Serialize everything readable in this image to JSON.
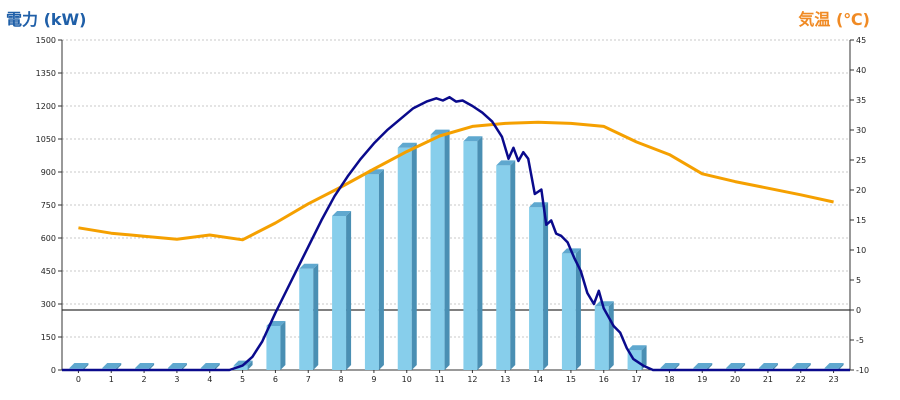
{
  "chart_data": {
    "type": "bar+line",
    "title_left": "電力 (kW)",
    "title_right": "気温 (℃)",
    "colors": {
      "bar_face": "#87ceeb",
      "bar_side": "#4a8fb3",
      "bar_top": "#5fa8cf",
      "power_line": "#0a0a8c",
      "temp_line": "#f5a000",
      "left_title": "#1f5fa8",
      "right_title": "#f08a24"
    },
    "grid": true,
    "x_labels": [
      "0",
      "1",
      "2",
      "3",
      "4",
      "5",
      "6",
      "7",
      "8",
      "9",
      "10",
      "11",
      "12",
      "13",
      "14",
      "15",
      "16",
      "17",
      "18",
      "19",
      "20",
      "21",
      "22",
      "23"
    ],
    "y_left": {
      "min": 0,
      "max": 1500,
      "ticks": [
        "0",
        "150",
        "300",
        "450",
        "600",
        "750",
        "900",
        "1050",
        "1200",
        "1350",
        "1500"
      ]
    },
    "y_right": {
      "min": -10,
      "max": 45,
      "ticks": [
        "-10",
        "-5",
        "0",
        "5",
        "10",
        "15",
        "20",
        "25",
        "30",
        "35",
        "40",
        "45"
      ]
    },
    "bars": {
      "name": "",
      "values": [
        0,
        0,
        0,
        0,
        0,
        20,
        200,
        460,
        700,
        890,
        1010,
        1070,
        1040,
        930,
        740,
        530,
        290,
        90,
        0,
        0,
        0,
        0,
        0,
        0
      ]
    },
    "power_line": {
      "x": [
        4.6,
        5.0,
        5.3,
        5.6,
        6.0,
        6.3,
        6.7,
        7.0,
        7.4,
        7.8,
        8.2,
        8.6,
        9.0,
        9.4,
        9.8,
        10.2,
        10.6,
        10.9,
        11.1,
        11.3,
        11.5,
        11.7,
        12.0,
        12.3,
        12.6,
        12.9,
        13.1,
        13.25,
        13.4,
        13.55,
        13.7,
        13.9,
        14.1,
        14.25,
        14.4,
        14.55,
        14.7,
        14.9,
        15.1,
        15.3,
        15.5,
        15.7,
        15.85,
        16.0,
        16.15,
        16.3,
        16.5,
        16.7,
        16.9,
        17.2,
        17.5,
        17.8
      ],
      "y": [
        0,
        20,
        60,
        130,
        260,
        350,
        470,
        560,
        680,
        790,
        880,
        960,
        1030,
        1090,
        1140,
        1190,
        1220,
        1235,
        1225,
        1240,
        1220,
        1225,
        1200,
        1170,
        1130,
        1060,
        960,
        1010,
        950,
        990,
        960,
        800,
        820,
        660,
        680,
        620,
        610,
        580,
        510,
        450,
        350,
        300,
        360,
        280,
        240,
        200,
        170,
        100,
        50,
        20,
        0,
        0
      ]
    },
    "temp_line": {
      "x": [
        0,
        1,
        2,
        3,
        4,
        5,
        6,
        7,
        8,
        9,
        10,
        11,
        12,
        13,
        14,
        15,
        16,
        17,
        18,
        19,
        20,
        21,
        22,
        23
      ],
      "y": [
        13.7,
        12.8,
        12.3,
        11.8,
        12.5,
        11.7,
        14.5,
        17.7,
        20.5,
        23.5,
        26.4,
        29.0,
        30.6,
        31.1,
        31.3,
        31.1,
        30.6,
        28.0,
        25.9,
        22.7,
        21.4,
        20.3,
        19.2,
        18.0
      ]
    }
  }
}
